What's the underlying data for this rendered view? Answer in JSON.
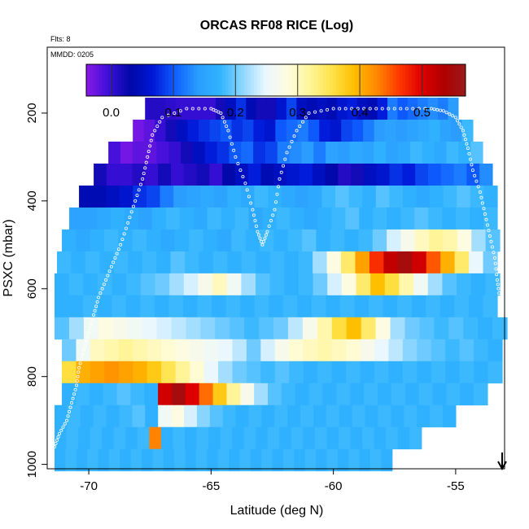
{
  "chart_data": {
    "type": "heatmap",
    "title": "ORCAS RF08 RICE (Log)",
    "flights_note": "Flts: 8",
    "date_note": "MMDD: 0205",
    "xlabel": "Latitude (deg N)",
    "ylabel": "PSXC (mbar)",
    "xlim": [
      -71.7,
      -53.0
    ],
    "ylim": [
      1010,
      50
    ],
    "x_ticks": [
      -70,
      -65,
      -60,
      -55
    ],
    "y_ticks": [
      200,
      400,
      600,
      800,
      1000
    ],
    "colorbar": {
      "ticks": [
        0.0,
        0.1,
        0.2,
        0.3,
        0.4,
        0.5
      ],
      "tick_labels": [
        "0.0",
        "0.1",
        "0.2",
        "0.3",
        "0.4",
        "0.5"
      ],
      "range": [
        -0.04,
        0.57
      ],
      "colors": [
        "#8a1ae8",
        "#3b0fd8",
        "#0008a8",
        "#0018d8",
        "#1060ff",
        "#2a9dff",
        "#30b4ff",
        "#8cd6ff",
        "#e8f6ff",
        "#fffde0",
        "#fff59a",
        "#ffe34a",
        "#ffbe00",
        "#ff8a00",
        "#ff3a00",
        "#e00000",
        "#b00000",
        "#9a1a1a"
      ]
    },
    "marker": {
      "symbol": "arrow-down",
      "x": -53.1,
      "direction": "down"
    },
    "rows": [
      {
        "p": 190,
        "xmin": -67.7,
        "xmax": -54.9,
        "vals": [
          0.01,
          0.01,
          0.005,
          0.0,
          0.0,
          0.0,
          0.0,
          0.02,
          0.05,
          0.08,
          0.04,
          0.02,
          0.02,
          0.06,
          0.09,
          0.05,
          0.04,
          0.05,
          0.04,
          0.06,
          0.07,
          0.05,
          0.04,
          0.07,
          0.12,
          0.1,
          0.11,
          0.12,
          0.13,
          0.12,
          0.14
        ]
      },
      {
        "p": 240,
        "xmin": -68.2,
        "xmax": -54.3,
        "vals": [
          -0.03,
          -0.02,
          0.0,
          0.02,
          0.05,
          0.07,
          0.08,
          0.09,
          0.1,
          0.08,
          0.09,
          0.07,
          0.06,
          0.1,
          0.11,
          0.12,
          0.1,
          0.07,
          0.06,
          0.09,
          0.1,
          0.12,
          0.14,
          0.15,
          0.14,
          0.15,
          0.16,
          0.17,
          0.15,
          0.14,
          0.18
        ]
      },
      {
        "p": 290,
        "xmin": -69.2,
        "xmax": -53.9,
        "vals": [
          -0.01,
          -0.03,
          -0.02,
          -0.02,
          -0.01,
          0.0,
          0.02,
          0.05,
          0.07,
          0.08,
          0.1,
          0.11,
          0.08,
          0.09,
          0.12,
          0.13,
          0.14,
          0.12,
          0.15,
          0.14,
          0.16,
          0.15,
          0.17,
          0.15,
          0.16,
          0.18,
          0.17,
          0.16,
          0.18,
          0.17,
          0.19
        ]
      },
      {
        "p": 340,
        "xmin": -69.8,
        "xmax": -53.5,
        "vals": [
          0.02,
          0.0,
          0.0,
          0.01,
          0.0,
          0.02,
          0.0,
          0.01,
          0.02,
          0.0,
          0.03,
          0.05,
          0.07,
          0.04,
          0.05,
          0.06,
          0.07,
          0.05,
          0.03,
          0.01,
          0.02,
          0.05,
          0.06,
          0.08,
          0.07,
          0.09,
          0.1,
          0.11,
          0.12,
          0.1,
          0.13
        ]
      },
      {
        "p": 390,
        "xmin": -70.4,
        "xmax": -53.3,
        "vals": [
          0.04,
          0.04,
          0.05,
          0.06,
          0.08,
          0.09,
          0.12,
          0.14,
          0.15,
          0.16,
          0.15,
          0.17,
          0.16,
          0.18,
          0.17,
          0.16,
          0.15,
          0.16,
          0.18,
          0.19,
          0.18,
          0.17,
          0.19,
          0.18,
          0.17,
          0.16,
          0.17,
          0.18,
          0.19,
          0.18,
          0.17
        ]
      },
      {
        "p": 440,
        "xmin": -70.8,
        "xmax": -53.3,
        "vals": [
          0.15,
          0.15,
          0.16,
          0.17,
          0.16,
          0.15,
          0.17,
          0.18,
          0.17,
          0.16,
          0.18,
          0.17,
          0.18,
          0.16,
          0.17,
          0.18,
          0.17,
          0.16,
          0.17,
          0.18,
          0.19,
          0.17,
          0.18,
          0.17,
          0.18,
          0.19,
          0.18,
          0.17,
          0.18,
          0.17,
          0.18
        ]
      },
      {
        "p": 490,
        "xmin": -71.1,
        "xmax": -53.2,
        "vals": [
          0.17,
          0.16,
          0.17,
          0.18,
          0.17,
          0.18,
          0.17,
          0.16,
          0.17,
          0.18,
          0.17,
          0.16,
          0.18,
          0.17,
          0.18,
          0.17,
          0.18,
          0.19,
          0.17,
          0.18,
          0.17,
          0.18,
          0.2,
          0.24,
          0.27,
          0.3,
          0.32,
          0.31,
          0.28,
          0.22,
          0.19
        ]
      },
      {
        "p": 540,
        "xmin": -71.3,
        "xmax": -53.3,
        "vals": [
          0.18,
          0.17,
          0.18,
          0.17,
          0.18,
          0.17,
          0.18,
          0.17,
          0.19,
          0.18,
          0.17,
          0.18,
          0.17,
          0.18,
          0.17,
          0.18,
          0.17,
          0.18,
          0.22,
          0.28,
          0.34,
          0.41,
          0.47,
          0.52,
          0.55,
          0.51,
          0.45,
          0.4,
          0.34,
          0.25,
          0.2
        ]
      },
      {
        "p": 590,
        "xmin": -71.4,
        "xmax": -53.2,
        "vals": [
          0.17,
          0.18,
          0.17,
          0.18,
          0.17,
          0.18,
          0.19,
          0.2,
          0.22,
          0.24,
          0.27,
          0.3,
          0.26,
          0.22,
          0.19,
          0.18,
          0.17,
          0.18,
          0.2,
          0.24,
          0.28,
          0.34,
          0.39,
          0.36,
          0.31,
          0.26,
          0.22,
          0.19,
          0.18,
          0.17,
          0.18
        ]
      },
      {
        "p": 640,
        "xmin": -71.4,
        "xmax": -53.3,
        "vals": [
          0.17,
          0.17,
          0.18,
          0.17,
          0.18,
          0.17,
          0.18,
          0.17,
          0.18,
          0.17,
          0.18,
          0.17,
          0.18,
          0.17,
          0.18,
          0.17,
          0.18,
          0.17,
          0.18,
          0.17,
          0.18,
          0.17,
          0.18,
          0.17,
          0.18,
          0.17,
          0.18,
          0.17,
          0.18,
          0.17,
          0.18
        ]
      },
      {
        "p": 690,
        "xmin": -71.4,
        "xmax": -52.9,
        "vals": [
          0.19,
          0.22,
          0.26,
          0.28,
          0.27,
          0.26,
          0.25,
          0.24,
          0.23,
          0.22,
          0.21,
          0.2,
          0.19,
          0.18,
          0.19,
          0.2,
          0.23,
          0.27,
          0.31,
          0.36,
          0.39,
          0.34,
          0.28,
          0.22,
          0.2,
          0.19,
          0.18,
          0.19,
          0.18,
          0.17,
          0.18
        ]
      },
      {
        "p": 740,
        "xmin": -71.1,
        "xmax": -53.1,
        "vals": [
          0.2,
          0.26,
          0.3,
          0.31,
          0.32,
          0.31,
          0.3,
          0.29,
          0.28,
          0.27,
          0.26,
          0.25,
          0.23,
          0.2,
          0.24,
          0.27,
          0.29,
          0.3,
          0.31,
          0.3,
          0.29,
          0.27,
          0.25,
          0.23,
          0.21,
          0.2,
          0.19,
          0.18,
          0.19,
          0.18,
          0.17
        ]
      },
      {
        "p": 790,
        "xmin": -71.1,
        "xmax": -53.1,
        "vals": [
          0.36,
          0.4,
          0.41,
          0.42,
          0.41,
          0.4,
          0.38,
          0.35,
          0.32,
          0.29,
          0.25,
          0.22,
          0.2,
          0.19,
          0.18,
          0.19,
          0.18,
          0.17,
          0.18,
          0.17,
          0.18,
          0.17,
          0.18,
          0.17,
          0.18,
          0.17,
          0.18,
          0.17,
          0.18,
          0.17,
          0.18
        ]
      },
      {
        "p": 840,
        "xmin": -71.1,
        "xmax": -53.7,
        "vals": [
          0.17,
          0.18,
          0.17,
          0.18,
          0.19,
          0.18,
          0.17,
          0.51,
          0.55,
          0.5,
          0.44,
          0.38,
          0.32,
          0.27,
          0.22,
          0.19,
          0.18,
          0.17,
          0.18,
          0.17,
          0.18,
          0.17,
          0.18,
          0.17,
          0.18,
          0.17,
          0.18,
          0.17,
          0.18,
          0.17,
          0.18
        ]
      },
      {
        "p": 890,
        "xmin": -71.4,
        "xmax": -55.0,
        "vals": [
          0.17,
          0.18,
          0.17,
          0.18,
          0.17,
          0.18,
          0.19,
          0.17,
          0.26,
          0.28,
          0.24,
          0.21,
          0.19,
          0.18,
          0.17,
          0.18,
          0.17,
          0.18,
          0.17,
          0.18,
          0.17,
          0.18,
          0.17,
          0.18,
          0.17,
          0.18,
          0.17,
          0.18,
          0.17,
          0.18,
          0.17
        ]
      },
      {
        "p": 940,
        "xmin": -71.4,
        "xmax": -56.4,
        "vals": [
          0.17,
          0.18,
          0.17,
          0.18,
          0.17,
          0.18,
          0.17,
          0.18,
          0.43,
          0.17,
          0.18,
          0.17,
          0.18,
          0.17,
          0.18,
          0.17,
          0.18,
          0.17,
          0.18,
          0.17,
          0.18,
          0.17,
          0.18,
          0.17,
          0.18,
          0.17,
          0.18,
          0.17,
          0.18,
          0.17,
          0.18
        ]
      },
      {
        "p": 990,
        "xmin": -71.4,
        "xmax": -57.6,
        "vals": [
          0.17,
          0.18,
          0.17,
          0.18,
          0.17,
          0.18,
          0.17,
          0.18,
          0.17,
          0.18,
          0.17,
          0.18,
          0.17,
          0.18,
          0.17,
          0.18,
          0.17,
          0.18,
          0.17,
          0.18,
          0.17,
          0.18,
          0.17,
          0.18,
          0.17,
          0.18,
          0.17,
          0.18,
          0.17,
          0.18,
          0.17
        ]
      }
    ],
    "flight_track": {
      "x": [
        -71.4,
        -71.2,
        -70.9,
        -70.7,
        -70.5,
        -70.4,
        -70.2,
        -70.0,
        -69.8,
        -69.6,
        -69.3,
        -69.0,
        -68.7,
        -68.4,
        -68.1,
        -67.8,
        -67.6,
        -67.4,
        -67.0,
        -66.0,
        -65.0,
        -64.6,
        -64.3,
        -64.0,
        -63.6,
        -63.3,
        -63.1,
        -62.9,
        -62.7,
        -62.4,
        -62.2,
        -61.9,
        -61.5,
        -61.0,
        -60.0,
        -59.0,
        -58.0,
        -57.0,
        -56.0,
        -55.5,
        -55.0,
        -54.7,
        -54.5,
        -54.3,
        -54.0,
        -53.8,
        -53.6,
        -53.4,
        -53.3,
        -53.2
      ],
      "y": [
        960,
        930,
        900,
        860,
        820,
        780,
        740,
        700,
        660,
        620,
        580,
        540,
        500,
        450,
        400,
        350,
        300,
        250,
        210,
        190,
        190,
        200,
        240,
        300,
        360,
        420,
        470,
        500,
        470,
        420,
        350,
        290,
        240,
        200,
        190,
        190,
        190,
        190,
        190,
        195,
        210,
        240,
        280,
        330,
        380,
        430,
        480,
        530,
        580,
        620
      ]
    }
  }
}
